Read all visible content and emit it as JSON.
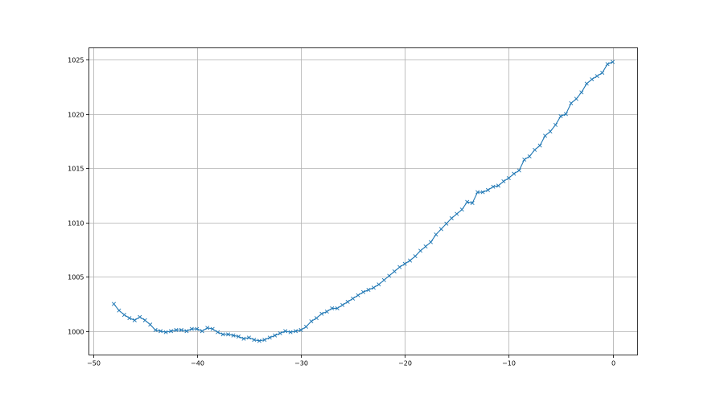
{
  "chart_data": {
    "type": "line",
    "title": "",
    "xlabel": "",
    "ylabel": "",
    "xlim": [
      -50.4,
      2.4
    ],
    "ylim": [
      997.8,
      1026.1
    ],
    "grid": true,
    "marker": "x",
    "color": "#1f77b4",
    "x_ticks": [
      -50,
      -40,
      -30,
      -20,
      -10,
      0
    ],
    "x_tick_labels": [
      "−50",
      "−40",
      "−30",
      "−20",
      "−10",
      "0"
    ],
    "y_ticks": [
      1000,
      1005,
      1010,
      1015,
      1020,
      1025
    ],
    "y_tick_labels": [
      "1000",
      "1005",
      "1010",
      "1015",
      "1020",
      "1025"
    ],
    "x": [
      -48,
      -47.5,
      -47,
      -46.5,
      -46,
      -45.5,
      -45,
      -44.5,
      -44,
      -43.5,
      -43,
      -42.5,
      -42,
      -41.5,
      -41,
      -40.5,
      -40,
      -39.5,
      -39,
      -38.5,
      -38,
      -37.5,
      -37,
      -36.5,
      -36,
      -35.5,
      -35,
      -34.5,
      -34,
      -33.5,
      -33,
      -32.5,
      -32,
      -31.5,
      -31,
      -30.5,
      -30,
      -29.5,
      -29,
      -28.5,
      -28,
      -27.5,
      -27,
      -26.5,
      -26,
      -25.5,
      -25,
      -24.5,
      -24,
      -23.5,
      -23,
      -22.5,
      -22,
      -21.5,
      -21,
      -20.5,
      -20,
      -19.5,
      -19,
      -18.5,
      -18,
      -17.5,
      -17,
      -16.5,
      -16,
      -15.5,
      -15,
      -14.5,
      -14,
      -13.5,
      -13,
      -12.5,
      -12,
      -11.5,
      -11,
      -10.5,
      -10,
      -9.5,
      -9,
      -8.5,
      -8,
      -7.5,
      -7,
      -6.5,
      -6,
      -5.5,
      -5,
      -4.5,
      -4,
      -3.5,
      -3,
      -2.5,
      -2,
      -1.5,
      -1,
      -0.5,
      0
    ],
    "y": [
      1002.5,
      1001.9,
      1001.5,
      1001.2,
      1001.0,
      1001.3,
      1001.0,
      1000.6,
      1000.1,
      1000.0,
      999.9,
      1000.0,
      1000.1,
      1000.1,
      1000.0,
      1000.2,
      1000.2,
      1000.0,
      1000.3,
      1000.2,
      999.9,
      999.7,
      999.7,
      999.6,
      999.5,
      999.3,
      999.4,
      999.2,
      999.1,
      999.2,
      999.4,
      999.6,
      999.8,
      1000.0,
      999.9,
      1000.0,
      1000.1,
      1000.4,
      1000.9,
      1001.2,
      1001.6,
      1001.8,
      1002.1,
      1002.1,
      1002.4,
      1002.7,
      1003.0,
      1003.3,
      1003.6,
      1003.8,
      1004.0,
      1004.3,
      1004.7,
      1005.1,
      1005.5,
      1005.9,
      1006.2,
      1006.5,
      1006.9,
      1007.4,
      1007.8,
      1008.2,
      1008.9,
      1009.4,
      1009.9,
      1010.4,
      1010.8,
      1011.2,
      1011.9,
      1011.8,
      1012.8,
      1012.8,
      1013.0,
      1013.3,
      1013.4,
      1013.8,
      1014.1,
      1014.5,
      1014.8,
      1015.8,
      1016.1,
      1016.7,
      1017.1,
      1018.0,
      1018.4,
      1019.0,
      1019.8,
      1020.0,
      1021.0,
      1021.4,
      1022.0,
      1022.8,
      1023.2,
      1023.5,
      1023.8,
      1024.6,
      1024.8
    ]
  }
}
